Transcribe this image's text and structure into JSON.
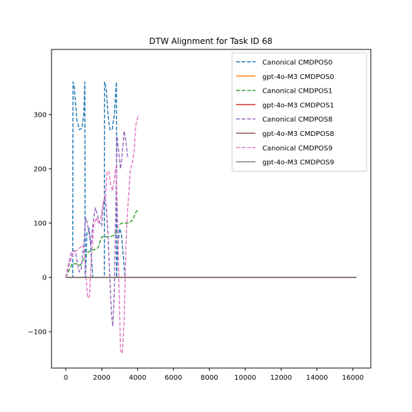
{
  "chart_data": {
    "type": "line",
    "title": "DTW Alignment for Task ID 68",
    "xlabel": "",
    "ylabel": "",
    "xlim": [
      -800,
      17000
    ],
    "ylim": [
      -167,
      420
    ],
    "x_ticks": [
      0,
      2000,
      4000,
      6000,
      8000,
      10000,
      12000,
      14000,
      16000
    ],
    "y_ticks": [
      -100,
      0,
      100,
      200,
      300
    ],
    "grid": false,
    "legend_position": "top-right",
    "series": [
      {
        "name": "Canonical CMDPOS0",
        "color": "#1f77b4",
        "dashed": true,
        "points": [
          [
            0,
            0
          ],
          [
            380,
            0
          ],
          [
            400,
            360
          ],
          [
            460,
            355
          ],
          [
            520,
            330
          ],
          [
            620,
            290
          ],
          [
            760,
            272
          ],
          [
            900,
            275
          ],
          [
            1000,
            300
          ],
          [
            1060,
            360
          ],
          [
            1075,
            0
          ],
          [
            1100,
            0
          ],
          [
            1170,
            80
          ],
          [
            1300,
            90
          ],
          [
            1380,
            60
          ],
          [
            1500,
            0
          ],
          [
            2150,
            0
          ],
          [
            2160,
            360
          ],
          [
            2260,
            345
          ],
          [
            2360,
            295
          ],
          [
            2460,
            272
          ],
          [
            2580,
            272
          ],
          [
            2700,
            300
          ],
          [
            2820,
            360
          ],
          [
            2830,
            0
          ],
          [
            2900,
            60
          ],
          [
            3000,
            90
          ],
          [
            3100,
            80
          ],
          [
            3200,
            40
          ],
          [
            3300,
            0
          ],
          [
            3400,
            0
          ]
        ]
      },
      {
        "name": "gpt-4o-M3 CMDPOS0",
        "color": "#ff7f0e",
        "dashed": false,
        "points": [
          [
            0,
            0
          ],
          [
            16200,
            0
          ]
        ]
      },
      {
        "name": "Canonical CMDPOS1",
        "color": "#2ca02c",
        "dashed": true,
        "points": [
          [
            0,
            0
          ],
          [
            200,
            15
          ],
          [
            350,
            25
          ],
          [
            600,
            25
          ],
          [
            800,
            22
          ],
          [
            1000,
            35
          ],
          [
            1100,
            40
          ],
          [
            1200,
            45
          ],
          [
            1400,
            50
          ],
          [
            1700,
            52
          ],
          [
            1800,
            55
          ],
          [
            1900,
            65
          ],
          [
            2000,
            75
          ],
          [
            2200,
            75
          ],
          [
            2500,
            75
          ],
          [
            2700,
            78
          ],
          [
            2800,
            85
          ],
          [
            2900,
            95
          ],
          [
            3100,
            100
          ],
          [
            3500,
            100
          ],
          [
            3700,
            105
          ],
          [
            3800,
            112
          ],
          [
            3900,
            120
          ],
          [
            4000,
            124
          ],
          [
            4060,
            126
          ]
        ]
      },
      {
        "name": "gpt-4o-M3 CMDPOS1",
        "color": "#d62728",
        "dashed": false,
        "points": [
          [
            0,
            0
          ],
          [
            16200,
            0
          ]
        ]
      },
      {
        "name": "Canonical CMDPOS8",
        "color": "#9467bd",
        "dashed": true,
        "points": [
          [
            0,
            0
          ],
          [
            150,
            25
          ],
          [
            300,
            45
          ],
          [
            450,
            50
          ],
          [
            550,
            45
          ],
          [
            650,
            25
          ],
          [
            750,
            10
          ],
          [
            850,
            15
          ],
          [
            1000,
            60
          ],
          [
            1100,
            110
          ],
          [
            1200,
            100
          ],
          [
            1300,
            80
          ],
          [
            1400,
            60
          ],
          [
            1500,
            95
          ],
          [
            1600,
            120
          ],
          [
            1650,
            128
          ],
          [
            1800,
            110
          ],
          [
            1900,
            100
          ],
          [
            2000,
            95
          ],
          [
            2100,
            140
          ],
          [
            2180,
            150
          ],
          [
            2250,
            130
          ],
          [
            2350,
            80
          ],
          [
            2450,
            0
          ],
          [
            2550,
            -70
          ],
          [
            2620,
            -90
          ],
          [
            2700,
            -30
          ],
          [
            2800,
            150
          ],
          [
            2850,
            260
          ],
          [
            2950,
            230
          ],
          [
            3050,
            200
          ],
          [
            3150,
            230
          ],
          [
            3250,
            270
          ],
          [
            3350,
            250
          ],
          [
            3450,
            220
          ]
        ]
      },
      {
        "name": "gpt-4o-M3 CMDPOS8",
        "color": "#8c564b",
        "dashed": false,
        "points": [
          [
            0,
            0
          ],
          [
            16200,
            0
          ]
        ]
      },
      {
        "name": "Canonical CMDPOS9",
        "color": "#e377c2",
        "dashed": true,
        "points": [
          [
            0,
            0
          ],
          [
            200,
            25
          ],
          [
            400,
            45
          ],
          [
            600,
            50
          ],
          [
            800,
            55
          ],
          [
            950,
            60
          ],
          [
            1050,
            40
          ],
          [
            1120,
            0
          ],
          [
            1220,
            -38
          ],
          [
            1320,
            -35
          ],
          [
            1420,
            35
          ],
          [
            1550,
            95
          ],
          [
            1700,
            110
          ],
          [
            1800,
            100
          ],
          [
            1950,
            110
          ],
          [
            2100,
            140
          ],
          [
            2200,
            145
          ],
          [
            2300,
            195
          ],
          [
            2400,
            195
          ],
          [
            2500,
            170
          ],
          [
            2600,
            160
          ],
          [
            2700,
            180
          ],
          [
            2800,
            205
          ],
          [
            2870,
            130
          ],
          [
            2950,
            0
          ],
          [
            3050,
            -135
          ],
          [
            3150,
            -140
          ],
          [
            3250,
            -80
          ],
          [
            3350,
            60
          ],
          [
            3430,
            120
          ],
          [
            3500,
            150
          ],
          [
            3600,
            200
          ],
          [
            3700,
            210
          ],
          [
            3800,
            230
          ],
          [
            3900,
            280
          ],
          [
            4000,
            295
          ],
          [
            4080,
            300
          ]
        ]
      },
      {
        "name": "gpt-4o-M3 CMDPOS9",
        "color": "#7f7f7f",
        "dashed": false,
        "points": [
          [
            0,
            0
          ],
          [
            16200,
            0
          ]
        ]
      }
    ]
  }
}
